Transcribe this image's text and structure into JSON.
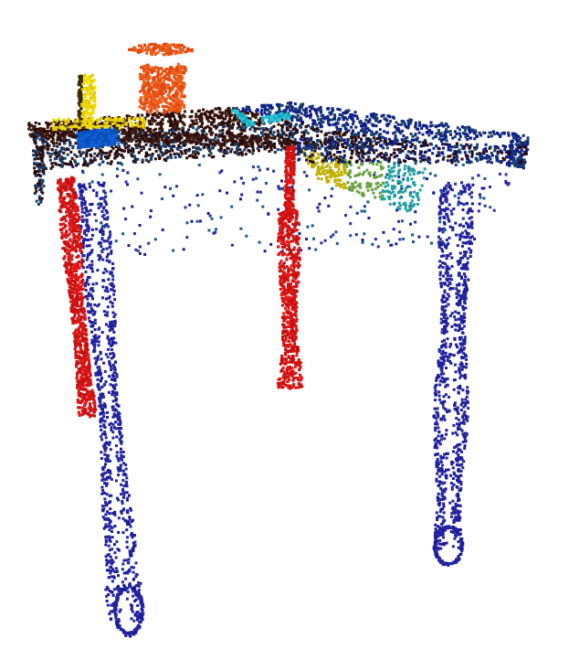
{
  "scene": {
    "background": "#ffffff",
    "objects": [
      {
        "name": "table-top",
        "icon": "point-cloud-icon",
        "colors": [
          "#2a0a08",
          "#3d1a10",
          "#1b3d6b",
          "#0e1d8a"
        ]
      },
      {
        "name": "table-skirt-and-underside",
        "icon": "point-cloud-icon",
        "colors": [
          "#1b1b9c",
          "#2a2fa8",
          "#1a5b8c"
        ]
      },
      {
        "name": "table-leg-front-left",
        "icon": "point-cloud-icon",
        "colors": [
          "#e01616",
          "#c50f0f"
        ]
      },
      {
        "name": "table-leg-front-right",
        "icon": "point-cloud-icon",
        "colors": [
          "#e01616",
          "#c50f0f"
        ]
      },
      {
        "name": "table-leg-back-left",
        "icon": "point-cloud-icon",
        "colors": [
          "#1b1b9c",
          "#26269f"
        ]
      },
      {
        "name": "table-leg-back-right",
        "icon": "point-cloud-icon",
        "colors": [
          "#1b1b9c",
          "#26269f"
        ]
      },
      {
        "name": "yellow-board",
        "icon": "point-cloud-icon",
        "colors": [
          "#f0e000",
          "#e6c900"
        ]
      },
      {
        "name": "orange-cylinder",
        "icon": "point-cloud-icon",
        "colors": [
          "#f0601a",
          "#e04810"
        ]
      },
      {
        "name": "blue-box",
        "icon": "point-cloud-icon",
        "colors": [
          "#1060d8",
          "#0a4fb8"
        ]
      },
      {
        "name": "cyan-tool",
        "icon": "point-cloud-icon",
        "colors": [
          "#30c8d8",
          "#1aa8c0"
        ]
      },
      {
        "name": "under-panel-gradient",
        "icon": "point-cloud-icon",
        "colors": [
          "#c0b000",
          "#6aa040",
          "#20a0a0"
        ]
      }
    ]
  }
}
